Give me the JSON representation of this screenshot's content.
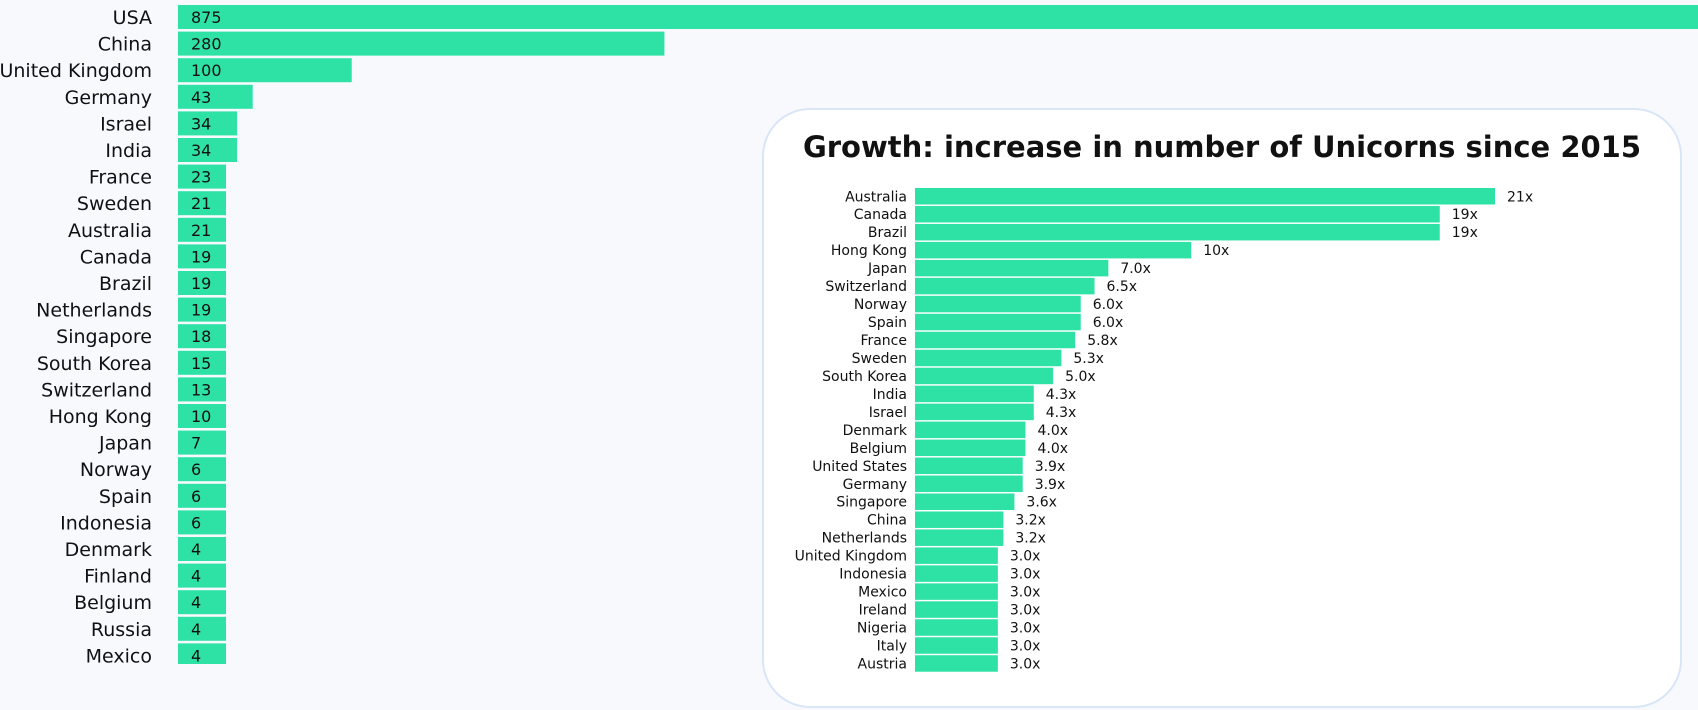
{
  "colors": {
    "bar": "#2ee2a6",
    "panel_border": "#d9e6f7",
    "background": "#f7f9fd",
    "text": "#111111"
  },
  "chart_data": [
    {
      "type": "bar",
      "orientation": "horizontal",
      "categories": [
        "USA",
        "China",
        "United Kingdom",
        "Germany",
        "Israel",
        "India",
        "France",
        "Sweden",
        "Australia",
        "Canada",
        "Brazil",
        "Netherlands",
        "Singapore",
        "South Korea",
        "Switzerland",
        "Hong Kong",
        "Japan",
        "Norway",
        "Spain",
        "Indonesia",
        "Denmark",
        "Finland",
        "Belgium",
        "Russia",
        "Mexico"
      ],
      "values": [
        875,
        280,
        100,
        43,
        34,
        34,
        23,
        21,
        21,
        19,
        19,
        19,
        18,
        15,
        13,
        10,
        7,
        6,
        6,
        6,
        4,
        4,
        4,
        4,
        4
      ],
      "value_labels": [
        "875",
        "280",
        "100",
        "43",
        "34",
        "34",
        "23",
        "21",
        "21",
        "19",
        "19",
        "19",
        "18",
        "15",
        "13",
        "10",
        "7",
        "6",
        "6",
        "6",
        "4",
        "4",
        "4",
        "4",
        "4"
      ],
      "title": "",
      "xlabel": "",
      "ylabel": "",
      "grid": false,
      "legend": "none"
    },
    {
      "type": "bar",
      "orientation": "horizontal",
      "title": "Growth: increase in number of Unicorns since 2015",
      "categories": [
        "Australia",
        "Canada",
        "Brazil",
        "Hong Kong",
        "Japan",
        "Switzerland",
        "Norway",
        "Spain",
        "France",
        "Sweden",
        "South Korea",
        "India",
        "Israel",
        "Denmark",
        "Belgium",
        "United States",
        "Germany",
        "Singapore",
        "China",
        "Netherlands",
        "United Kingdom",
        "Indonesia",
        "Mexico",
        "Ireland",
        "Nigeria",
        "Italy",
        "Austria"
      ],
      "values": [
        21,
        19,
        19,
        10,
        7.0,
        6.5,
        6.0,
        6.0,
        5.8,
        5.3,
        5.0,
        4.3,
        4.3,
        4.0,
        4.0,
        3.9,
        3.9,
        3.6,
        3.2,
        3.2,
        3.0,
        3.0,
        3.0,
        3.0,
        3.0,
        3.0,
        3.0
      ],
      "value_labels": [
        "21x",
        "19x",
        "19x",
        "10x",
        "7.0x",
        "6.5x",
        "6.0x",
        "6.0x",
        "5.8x",
        "5.3x",
        "5.0x",
        "4.3x",
        "4.3x",
        "4.0x",
        "4.0x",
        "3.9x",
        "3.9x",
        "3.6x",
        "3.2x",
        "3.2x",
        "3.0x",
        "3.0x",
        "3.0x",
        "3.0x",
        "3.0x",
        "3.0x",
        "3.0x"
      ],
      "xlabel": "",
      "ylabel": "",
      "grid": false,
      "legend": "none"
    }
  ]
}
